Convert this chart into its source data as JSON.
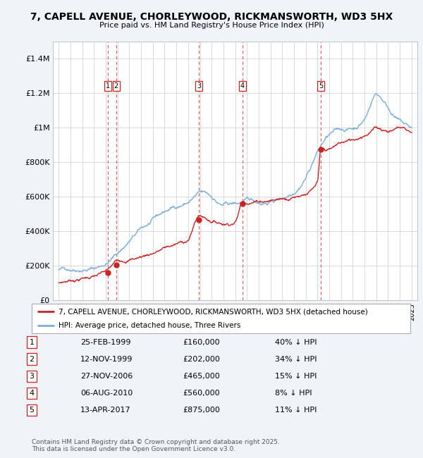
{
  "title": "7, CAPELL AVENUE, CHORLEYWOOD, RICKMANSWORTH, WD3 5HX",
  "subtitle": "Price paid vs. HM Land Registry's House Price Index (HPI)",
  "bg_color": "#f0f4f8",
  "plot_bg_color": "#ffffff",
  "sale_dates": [
    1999.15,
    1999.87,
    2006.91,
    2010.6,
    2017.28
  ],
  "sale_prices": [
    160000,
    202000,
    465000,
    560000,
    875000
  ],
  "sale_labels": [
    "1",
    "2",
    "3",
    "4",
    "5"
  ],
  "sale_label_dates_str": [
    "25-FEB-1999",
    "12-NOV-1999",
    "27-NOV-2006",
    "06-AUG-2010",
    "13-APR-2017"
  ],
  "sale_prices_str": [
    "£160,000",
    "£202,000",
    "£465,000",
    "£560,000",
    "£875,000"
  ],
  "sale_pct": [
    "40% ↓ HPI",
    "34% ↓ HPI",
    "15% ↓ HPI",
    "8% ↓ HPI",
    "11% ↓ HPI"
  ],
  "ylim": [
    0,
    1500000
  ],
  "xlim": [
    1994.5,
    2025.5
  ],
  "yticks": [
    0,
    200000,
    400000,
    600000,
    800000,
    1000000,
    1200000,
    1400000
  ],
  "ytick_labels": [
    "£0",
    "£200K",
    "£400K",
    "£600K",
    "£800K",
    "£1M",
    "£1.2M",
    "£1.4M"
  ],
  "grid_color": "#cccccc",
  "hpi_color": "#7aacda",
  "sale_line_color": "#cc2222",
  "dashed_line_color": "#ee3333",
  "legend_house_label": "7, CAPELL AVENUE, CHORLEYWOOD, RICKMANSWORTH, WD3 5HX (detached house)",
  "legend_hpi_label": "HPI: Average price, detached house, Three Rivers",
  "footnote": "Contains HM Land Registry data © Crown copyright and database right 2025.\nThis data is licensed under the Open Government Licence v3.0.",
  "hpi_waypoints_x": [
    1995,
    1996,
    1997,
    1998,
    1999,
    2000,
    2001,
    2002,
    2003,
    2004,
    2005,
    2006,
    2007,
    2008,
    2009,
    2010,
    2011,
    2012,
    2013,
    2014,
    2015,
    2016,
    2017,
    2018,
    2019,
    2020,
    2021,
    2022,
    2023,
    2024,
    2025
  ],
  "hpi_waypoints_y": [
    175000,
    185000,
    200000,
    210000,
    240000,
    300000,
    370000,
    430000,
    470000,
    510000,
    540000,
    570000,
    610000,
    580000,
    530000,
    530000,
    540000,
    530000,
    545000,
    565000,
    620000,
    720000,
    870000,
    960000,
    980000,
    990000,
    1050000,
    1200000,
    1130000,
    1050000,
    1000000
  ],
  "sale_waypoints_x": [
    1995,
    1997,
    1999.15,
    1999.87,
    2002,
    2004,
    2006,
    2006.91,
    2008,
    2009,
    2010,
    2010.6,
    2012,
    2014,
    2016,
    2017,
    2017.28,
    2018,
    2019,
    2020,
    2021,
    2022,
    2023,
    2024,
    2025
  ],
  "sale_waypoints_y": [
    100000,
    130000,
    160000,
    202000,
    240000,
    290000,
    330000,
    465000,
    440000,
    430000,
    450000,
    560000,
    580000,
    600000,
    650000,
    700000,
    875000,
    870000,
    900000,
    910000,
    950000,
    990000,
    980000,
    1000000,
    970000
  ]
}
